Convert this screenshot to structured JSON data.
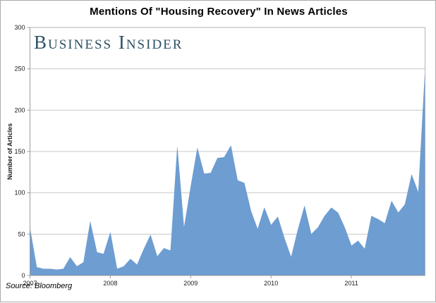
{
  "header": {
    "title": "Mentions Of \"Housing Recovery\" In News Articles"
  },
  "watermark": {
    "text": "Business Insider"
  },
  "source": {
    "label": "Source: Bloomberg"
  },
  "chart_data": {
    "type": "area",
    "title": "Mentions Of \"Housing Recovery\" In News Articles",
    "xlabel": "",
    "ylabel": "Number of Articles",
    "ylim": [
      0,
      300
    ],
    "y_ticks": [
      0,
      50,
      100,
      150,
      200,
      250,
      300
    ],
    "x_tick_labels": [
      "2007",
      "2008",
      "2009",
      "2010",
      "2011"
    ],
    "months_per_tick": 12,
    "start": "2007-01",
    "end": "2011-12",
    "grid": true,
    "legend": false,
    "area_color": "#6D9DD1",
    "grid_color": "#c8c8c8",
    "axis_color": "#9b9b9b",
    "border_color": "#b3b3b3",
    "values": [
      57,
      10,
      8,
      8,
      7,
      8,
      22,
      11,
      16,
      65,
      28,
      26,
      52,
      8,
      11,
      20,
      13,
      32,
      49,
      23,
      33,
      30,
      155,
      57,
      107,
      154,
      123,
      124,
      142,
      143,
      157,
      115,
      112,
      78,
      56,
      82,
      61,
      71,
      45,
      22,
      55,
      84,
      50,
      58,
      72,
      82,
      76,
      58,
      36,
      42,
      32,
      72,
      68,
      63,
      90,
      76,
      86,
      122,
      100,
      248
    ]
  }
}
